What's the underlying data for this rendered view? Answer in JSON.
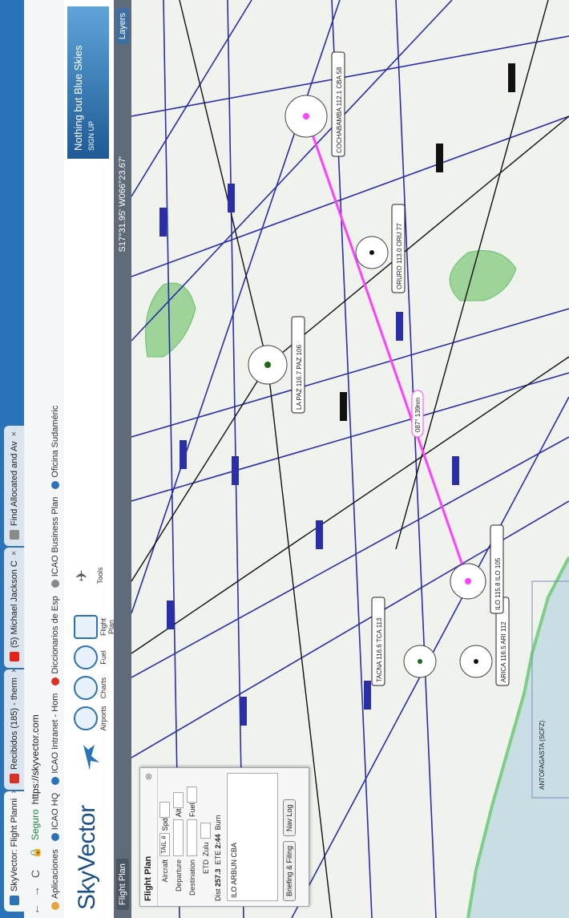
{
  "tabs": [
    {
      "label": "SkyVector: Flight Planni",
      "color": "#2b73b9",
      "active": true
    },
    {
      "label": "Recibidos (185) - therm",
      "color": "#d93025",
      "active": false
    },
    {
      "label": "(5) Michael Jackson C",
      "color": "#e62117",
      "active": false
    },
    {
      "label": "Find Allocated and Av",
      "color": "#8a8a8a",
      "active": false
    }
  ],
  "address": {
    "secure_label": "Seguro",
    "url": "https://skyvector.com"
  },
  "bookmarks": [
    {
      "label": "Aplicaciones",
      "color": "#e8a33d"
    },
    {
      "label": "ICAO HQ",
      "color": "#2b73b9"
    },
    {
      "label": "ICAO Intranet - Hom",
      "color": "#2b73b9"
    },
    {
      "label": "Diccionarios de Esp",
      "color": "#d93025"
    },
    {
      "label": "ICAO Business Plan",
      "color": "#888888"
    },
    {
      "label": "Oficina Sudaméric",
      "color": "#2b73b9"
    }
  ],
  "site": {
    "logo": "SkyVector",
    "icons": [
      "Airports",
      "Charts",
      "Fuel",
      "Flight Plan",
      "Tools"
    ],
    "ad_title": "Nothing but Blue Skies",
    "ad_sub": "SIGN UP"
  },
  "maptool": {
    "tab": "Flight Plan",
    "coord": "S17°31.95' W066°23.67'",
    "layers": "Layers"
  },
  "flight_plan": {
    "title": "Flight Plan",
    "aircraft_label": "Aircraft",
    "aircraft_value": "TAIL #",
    "departure_label": "Departure",
    "destination_label": "Destination",
    "etd_label": "ETD",
    "etd_zulu": "Zulu",
    "dist_label": "Dist",
    "dist_value": "257.3",
    "ete_label": "ETE",
    "ete_value": "2:44",
    "burn_label": "Burn",
    "spd_label": "Spd",
    "alt_label": "Alt",
    "fuel_label": "Fuel",
    "route": "ILO ARBUN CBA",
    "btn_briefing": "Briefing & Filing",
    "btn_navlog": "Nav Log"
  },
  "map_labels": {
    "lapaz": "LA PAZ 116.7 PAZ 106",
    "cochabamba": "COCHABAMBA 112.1 CBA 58",
    "oruro": "ORURO 113.0 ORU 77",
    "tacna": "TACNA 116.6 TCA 113",
    "arica": "ARICA 116.5 ARI 112",
    "ilo": "ILO 115.8 ILO 105",
    "antofagasta": "ANTOFAGASTA (SCFZ)",
    "route_label": "087° 139nm"
  },
  "colors": {
    "airway": "#2a2ea8",
    "route": "#ff40ff",
    "land": "#9ed39a",
    "water": "#c8dde4"
  }
}
